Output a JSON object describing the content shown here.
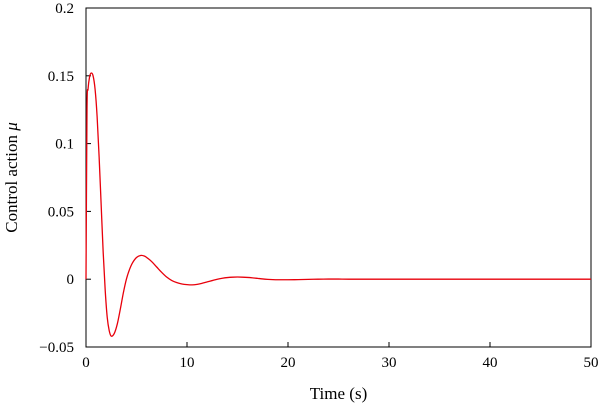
{
  "chart_data": {
    "type": "line",
    "title": "",
    "xlabel": "Time (s)",
    "ylabel_text": "Control action ",
    "ylabel_symbol": "μ",
    "xlim": [
      0,
      50
    ],
    "ylim": [
      -0.05,
      0.2
    ],
    "x_ticks": [
      0,
      10,
      20,
      30,
      40,
      50
    ],
    "x_tick_labels": [
      "0",
      "10",
      "20",
      "30",
      "40",
      "50"
    ],
    "y_ticks": [
      -0.05,
      0,
      0.05,
      0.1,
      0.15,
      0.2
    ],
    "y_tick_labels": [
      "−0.05",
      "0",
      "0.05",
      "0.1",
      "0.15",
      "0.2"
    ],
    "grid": false,
    "series_color": "#e8000b",
    "series": [
      {
        "x": [
          0,
          0.1,
          0.2,
          0.35,
          0.5,
          0.7,
          0.9,
          1.1,
          1.3,
          1.5,
          1.7,
          1.9,
          2.1,
          2.3,
          2.5,
          2.8,
          3.1,
          3.4,
          3.7,
          4.0,
          4.3,
          4.6,
          5.0,
          5.4,
          5.8,
          6.1,
          6.5,
          7.0,
          7.5,
          8.0,
          8.5,
          9.0,
          9.5,
          10.0,
          10.5,
          11.0,
          11.5,
          12.0,
          12.5,
          13.0,
          13.5,
          14.0,
          14.5,
          15.0,
          15.5,
          16.0,
          16.5,
          17.0,
          17.5,
          18.0,
          18.5,
          19.0,
          19.5,
          20.0,
          21.0,
          22.0,
          23.0,
          24.0,
          25.0,
          26.0,
          28.0,
          30.0,
          35.0,
          40.0,
          45.0,
          50.0
        ],
        "y": [
          0.0,
          0.125,
          0.14,
          0.149,
          0.152,
          0.15,
          0.14,
          0.12,
          0.09,
          0.055,
          0.02,
          -0.008,
          -0.028,
          -0.038,
          -0.042,
          -0.04,
          -0.033,
          -0.022,
          -0.01,
          0.0,
          0.007,
          0.012,
          0.016,
          0.0175,
          0.017,
          0.0155,
          0.013,
          0.009,
          0.005,
          0.0015,
          -0.001,
          -0.0025,
          -0.0035,
          -0.004,
          -0.0042,
          -0.0038,
          -0.003,
          -0.002,
          -0.001,
          0.0,
          0.0007,
          0.0012,
          0.0015,
          0.0016,
          0.0015,
          0.0013,
          0.001,
          0.0006,
          0.0002,
          -0.0001,
          -0.0003,
          -0.0004,
          -0.0004,
          -0.0004,
          -0.0003,
          -0.0001,
          0.0,
          0.0001,
          0.0001,
          0.0,
          0.0,
          0.0,
          0.0,
          0.0,
          0.0,
          0.0
        ]
      }
    ]
  }
}
